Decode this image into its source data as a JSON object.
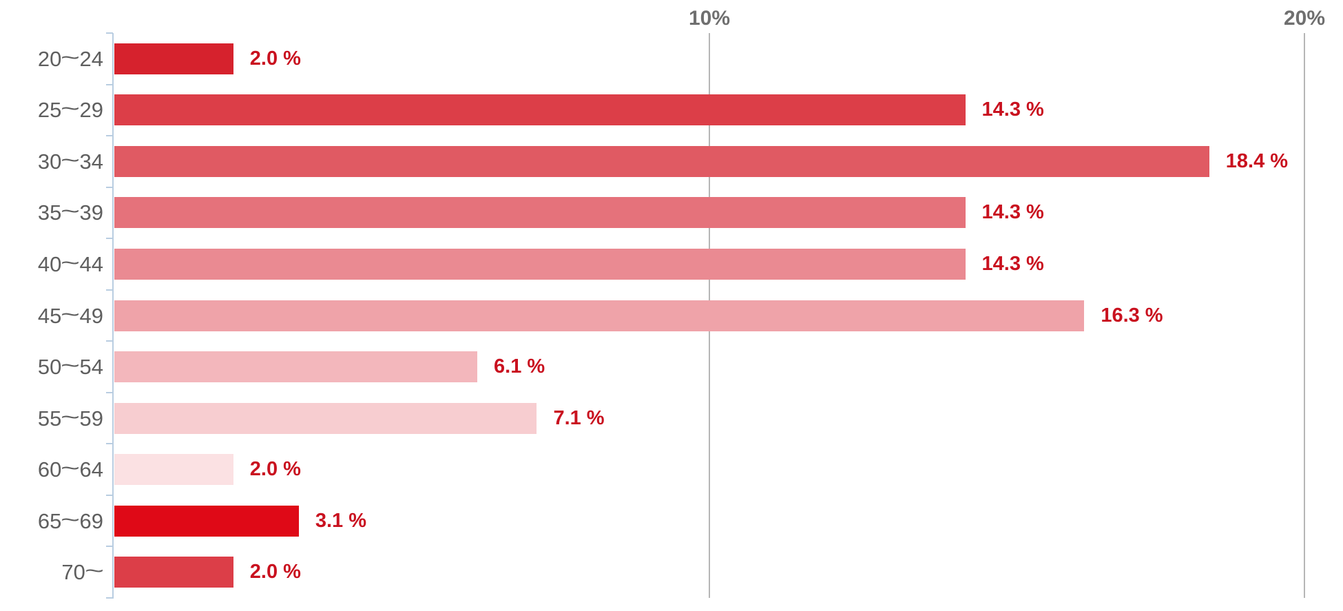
{
  "chart_data": {
    "type": "bar",
    "orientation": "horizontal",
    "title": "",
    "xlabel": "",
    "ylabel": "",
    "categories": [
      "20〜24",
      "25〜29",
      "30〜34",
      "35〜39",
      "40〜44",
      "45〜49",
      "50〜54",
      "55〜59",
      "60〜64",
      "65〜69",
      "70〜"
    ],
    "values": [
      2.0,
      14.3,
      18.4,
      14.3,
      14.3,
      16.3,
      6.1,
      7.1,
      2.0,
      3.1,
      2.0
    ],
    "value_labels": [
      "2.0 %",
      "14.3 %",
      "18.4 %",
      "14.3 %",
      "14.3 %",
      "16.3 %",
      "6.1 %",
      "7.1 %",
      "2.0 %",
      "3.1 %",
      "2.0 %"
    ],
    "bar_colors": [
      "#d6222d",
      "#dc3e48",
      "#e05a63",
      "#e5727b",
      "#ea8a92",
      "#efa3a9",
      "#f3b7bc",
      "#f7cdd0",
      "#fbe1e3",
      "#df0917",
      "#dc3e48"
    ],
    "xlim": [
      0,
      20
    ],
    "x_ticks": [
      {
        "value": 10,
        "label": "10%"
      },
      {
        "value": 20,
        "label": "20%"
      }
    ],
    "grid": "vertical gridlines at 10% and 20%, drawn behind bars",
    "legend": "none"
  },
  "styles": {
    "background": "#ffffff",
    "value_label_color": "#c9111f",
    "category_label_color": "#5f5f5f",
    "x_tick_label_color": "#6f6f6f",
    "gridline_color": "#b6b6b6",
    "axis_line_color": "#b9cde1"
  }
}
